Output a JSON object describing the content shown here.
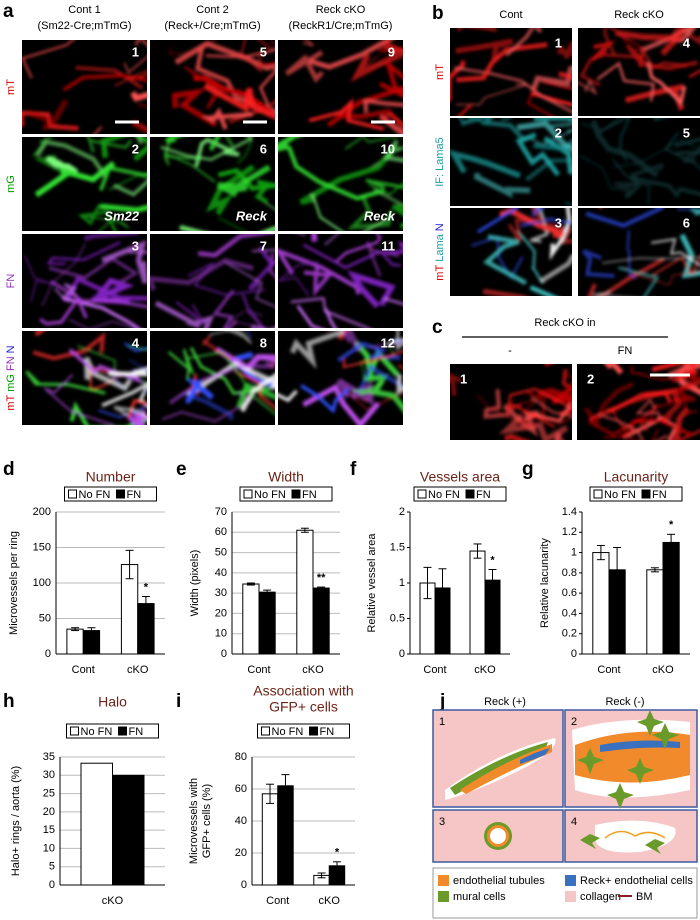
{
  "panel_letters": [
    "a",
    "b",
    "c",
    "d",
    "e",
    "f",
    "g",
    "h",
    "i",
    "j"
  ],
  "panel_a": {
    "columns": [
      {
        "title": "Cont 1",
        "genotype": "(Sm22-Cre;mTmG)"
      },
      {
        "title": "Cont 2",
        "genotype": "(Reck+/Cre;mTmG)"
      },
      {
        "title": "Reck cKO",
        "genotype": "(ReckR1/Cre;mTmG)"
      }
    ],
    "rows": [
      [
        "mT"
      ],
      [
        "mG"
      ],
      [
        "FN"
      ],
      [
        "mT",
        "mG",
        "FN",
        "N"
      ]
    ],
    "image_numbers": [
      "1",
      "5",
      "9",
      "2",
      "6",
      "10",
      "3",
      "7",
      "11",
      "4",
      "8",
      "12"
    ],
    "promoter_labels": [
      "Sm22",
      "Reck",
      "Reck"
    ]
  },
  "panel_b": {
    "columns": [
      "Cont",
      "Reck cKO"
    ],
    "rows": [
      [
        "mT"
      ],
      [
        "IF:",
        "Lama5"
      ],
      [
        "mT",
        "Lama",
        "N"
      ]
    ],
    "image_numbers": [
      "1",
      "4",
      "2",
      "5",
      "3",
      "6"
    ]
  },
  "panel_c": {
    "heading": "Reck cKO in",
    "columns": [
      "-",
      "FN"
    ],
    "image_numbers": [
      "1",
      "2"
    ]
  },
  "chart_data": [
    {
      "type": "bar",
      "title": [
        "Number"
      ],
      "ylabel": [
        "Microvessels per ring"
      ],
      "categories": [
        "Cont",
        "cKO"
      ],
      "grid": true,
      "series": [
        {
          "name": "No FN",
          "color": "#ffffff",
          "values": [
            35,
            126
          ],
          "errors": [
            2,
            20
          ]
        },
        {
          "name": "FN",
          "color": "#000000",
          "values": [
            33,
            71
          ],
          "errors": [
            4,
            10
          ]
        }
      ],
      "ylim": [
        0,
        200
      ],
      "yticks": [
        0,
        50,
        100,
        150,
        200
      ],
      "annotation": "*"
    },
    {
      "type": "bar",
      "title": [
        "Width"
      ],
      "ylabel": [
        "Width (pixels)"
      ],
      "categories": [
        "Cont",
        "cKO"
      ],
      "grid": true,
      "series": [
        {
          "name": "No FN",
          "color": "#ffffff",
          "values": [
            34.5,
            61
          ],
          "errors": [
            0.5,
            1
          ]
        },
        {
          "name": "FN",
          "color": "#000000",
          "values": [
            30.5,
            32.5
          ],
          "errors": [
            1,
            0.5
          ]
        }
      ],
      "ylim": [
        0,
        70
      ],
      "yticks": [
        0,
        10,
        20,
        30,
        40,
        50,
        60,
        70
      ],
      "annotation": "**"
    },
    {
      "type": "bar",
      "title": [
        "Vessels area"
      ],
      "ylabel": [
        "Relative vessel area"
      ],
      "categories": [
        "Cont",
        "cKO"
      ],
      "grid": false,
      "series": [
        {
          "name": "No FN",
          "color": "#ffffff",
          "values": [
            1,
            1.45
          ],
          "errors": [
            0.22,
            0.1
          ]
        },
        {
          "name": "FN",
          "color": "#000000",
          "values": [
            0.93,
            1.04
          ],
          "errors": [
            0.27,
            0.15
          ]
        }
      ],
      "ylim": [
        0,
        2
      ],
      "yticks": [
        0,
        0.5,
        1,
        1.5,
        2
      ],
      "annotation": "*"
    },
    {
      "type": "bar",
      "title": [
        "Lacunarity"
      ],
      "ylabel": [
        "Relative lacunarity"
      ],
      "categories": [
        "Cont",
        "cKO"
      ],
      "grid": false,
      "series": [
        {
          "name": "No FN",
          "color": "#ffffff",
          "values": [
            1,
            0.83
          ],
          "errors": [
            0.07,
            0.02
          ]
        },
        {
          "name": "FN",
          "color": "#000000",
          "values": [
            0.83,
            1.1
          ],
          "errors": [
            0.22,
            0.08
          ]
        }
      ],
      "ylim": [
        0,
        1.4
      ],
      "yticks": [
        0,
        0.2,
        0.4,
        0.6,
        0.8,
        1,
        1.2,
        1.4
      ],
      "annotation": "*"
    },
    {
      "type": "bar",
      "title": [
        "Halo"
      ],
      "ylabel": [
        "Halo+ rings / aorta (%)"
      ],
      "categories": [
        "cKO"
      ],
      "grid": true,
      "series": [
        {
          "name": "No FN",
          "color": "#ffffff",
          "values": [
            33.3
          ]
        },
        {
          "name": "FN",
          "color": "#000000",
          "values": [
            30
          ]
        }
      ],
      "ylim": [
        0,
        35
      ],
      "yticks": [
        0,
        5,
        10,
        15,
        20,
        25,
        30,
        35
      ]
    },
    {
      "type": "bar",
      "title": [
        "Association with",
        "GFP+ cells"
      ],
      "ylabel": [
        "Microvessels with",
        "GFP+ cells (%)"
      ],
      "categories": [
        "Cont",
        "cKO"
      ],
      "grid": true,
      "series": [
        {
          "name": "No FN",
          "color": "#ffffff",
          "values": [
            57,
            6
          ],
          "errors": [
            6,
            1.5
          ]
        },
        {
          "name": "FN",
          "color": "#000000",
          "values": [
            62,
            12
          ],
          "errors": [
            7,
            2.5
          ]
        }
      ],
      "ylim": [
        0,
        80
      ],
      "yticks": [
        0,
        20,
        40,
        60,
        80
      ],
      "annotation": "*"
    }
  ],
  "panel_j": {
    "columns": [
      "Reck (+)",
      "Reck (-)"
    ],
    "image_numbers": [
      "1",
      "2",
      "3",
      "4"
    ],
    "legend": [
      "endothelial tubules",
      "Reck+ endothelial cells",
      "mural cells",
      "collagen",
      "BM"
    ]
  }
}
